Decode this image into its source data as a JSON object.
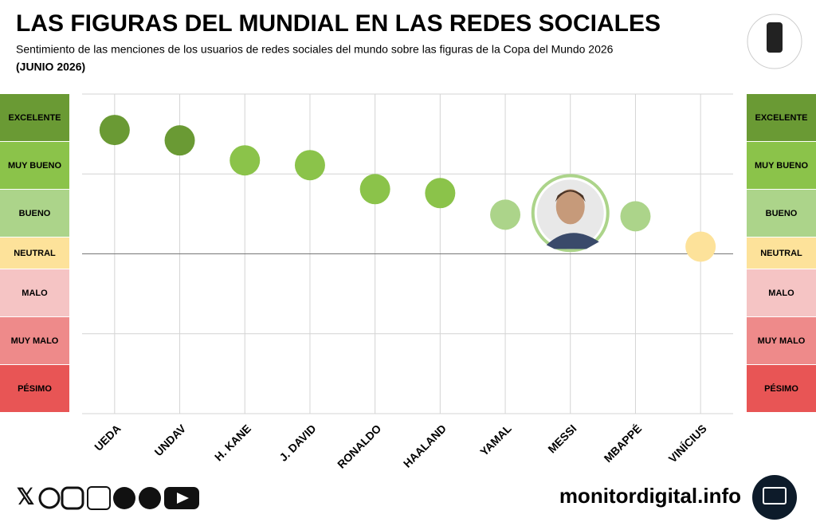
{
  "chart_data": {
    "type": "dot",
    "title": "LAS FIGURAS DEL MUNDIAL EN LAS REDES SOCIALES",
    "subtitle": "Sentimiento de las menciones de los usuarios de redes sociales del mundo sobre las figuras de la Copa del Mundo 2026",
    "date": "(JUNIO 2026)",
    "categories": [
      "UEDA",
      "UNDAV",
      "H. KANE",
      "J. DAVID",
      "RONALDO",
      "HAALAND",
      "YAMAL",
      "MESSI",
      "MBAPPÉ",
      "VINÍCIUS"
    ],
    "values": [
      3.1,
      2.84,
      2.34,
      2.22,
      1.62,
      1.52,
      0.98,
      1.02,
      0.94,
      0.18
    ],
    "colors": [
      "#6a9a34",
      "#6a9a34",
      "#8bc34a",
      "#8bc34a",
      "#8bc34a",
      "#8bc34a",
      "#acd48a",
      "#acd48a",
      "#acd48a",
      "#fde29a"
    ],
    "highlight": "MESSI",
    "ylim": [
      -4,
      4
    ],
    "yticks": [
      -4,
      -2,
      0,
      2,
      4
    ],
    "grid": true,
    "bands": [
      {
        "label": "EXCELENTE",
        "color": "#6a9a34"
      },
      {
        "label": "MUY BUENO",
        "color": "#8bc34a"
      },
      {
        "label": "BUENO",
        "color": "#acd48a"
      },
      {
        "label": "NEUTRAL",
        "color": "#fde29a"
      },
      {
        "label": "MALO",
        "color": "#f5c4c4"
      },
      {
        "label": "MUY MALO",
        "color": "#ee8a8a"
      },
      {
        "label": "PÉSIMO",
        "color": "#e85555"
      }
    ],
    "logo": "FIFA",
    "footer": "monitordigital.info"
  }
}
